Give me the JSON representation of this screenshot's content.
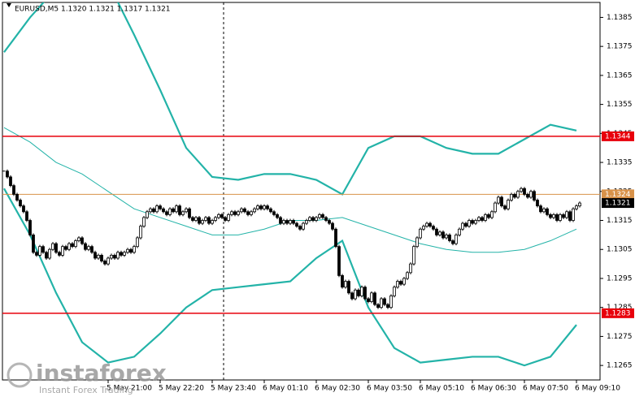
{
  "chart_data": {
    "type": "candlestick",
    "title": "EURUSD,M5  1.1320 1.1321 1.1317 1.1321",
    "watermark": {
      "brand": "instaforex",
      "tagline": "Instant Forex Trading"
    },
    "close": [
      1.1332,
      1.133,
      1.1327,
      1.1324,
      1.1322,
      1.132,
      1.1318,
      1.1315,
      1.131,
      1.1304,
      1.1303,
      1.1306,
      1.1304,
      1.1302,
      1.1305,
      1.1307,
      1.1304,
      1.1303,
      1.1306,
      1.1305,
      1.1307,
      1.1306,
      1.1308,
      1.1309,
      1.1307,
      1.1305,
      1.1306,
      1.1304,
      1.1302,
      1.1303,
      1.1301,
      1.13,
      1.1302,
      1.1303,
      1.1302,
      1.1304,
      1.1303,
      1.1304,
      1.1305,
      1.1304,
      1.1306,
      1.1309,
      1.1313,
      1.1316,
      1.1318,
      1.1319,
      1.1318,
      1.132,
      1.1319,
      1.1318,
      1.1317,
      1.1319,
      1.1318,
      1.132,
      1.1317,
      1.1318,
      1.1319,
      1.1316,
      1.1315,
      1.1316,
      1.1314,
      1.1315,
      1.1316,
      1.1314,
      1.1315,
      1.1316,
      1.1317,
      1.1316,
      1.1315,
      1.1317,
      1.1318,
      1.1317,
      1.1318,
      1.1319,
      1.1318,
      1.1317,
      1.1318,
      1.1319,
      1.132,
      1.1319,
      1.132,
      1.1319,
      1.1318,
      1.1317,
      1.1316,
      1.1314,
      1.1315,
      1.1314,
      1.1315,
      1.1314,
      1.1313,
      1.1312,
      1.1314,
      1.1315,
      1.1316,
      1.1315,
      1.1316,
      1.1317,
      1.1316,
      1.1315,
      1.1314,
      1.1312,
      1.1306,
      1.1296,
      1.1292,
      1.1294,
      1.129,
      1.1288,
      1.1291,
      1.1289,
      1.1292,
      1.1288,
      1.1287,
      1.129,
      1.1286,
      1.1285,
      1.1288,
      1.1286,
      1.1285,
      1.1289,
      1.1292,
      1.1294,
      1.1293,
      1.1295,
      1.1297,
      1.13,
      1.1306,
      1.1309,
      1.1312,
      1.1313,
      1.1314,
      1.1313,
      1.1312,
      1.131,
      1.1311,
      1.1309,
      1.131,
      1.1308,
      1.1307,
      1.131,
      1.1312,
      1.1314,
      1.1313,
      1.1315,
      1.1314,
      1.1315,
      1.1316,
      1.1315,
      1.1317,
      1.1316,
      1.1318,
      1.1321,
      1.1323,
      1.132,
      1.1319,
      1.1322,
      1.1324,
      1.1323,
      1.1325,
      1.1326,
      1.1324,
      1.1323,
      1.1325,
      1.1322,
      1.132,
      1.1318,
      1.1319,
      1.1317,
      1.1316,
      1.1317,
      1.1315,
      1.1317,
      1.1316,
      1.1318,
      1.1315,
      1.1319,
      1.132,
      1.1321
    ],
    "bands": {
      "x": [
        0,
        8,
        16,
        24,
        32,
        40,
        48,
        56,
        64,
        72,
        80,
        88,
        96,
        104,
        112,
        120,
        128,
        136,
        144,
        152,
        160,
        168,
        176
      ],
      "color": "#23b3a8",
      "upper": [
        1.1373,
        1.1385,
        1.1395,
        1.1398,
        1.1397,
        1.1379,
        1.136,
        1.134,
        1.133,
        1.1329,
        1.1331,
        1.1331,
        1.1329,
        1.1324,
        1.134,
        1.1344,
        1.1344,
        1.134,
        1.1338,
        1.1338,
        1.1343,
        1.1348,
        1.1346
      ],
      "middle": [
        1.1347,
        1.1342,
        1.1335,
        1.1331,
        1.1325,
        1.1319,
        1.1316,
        1.1313,
        1.131,
        1.131,
        1.1312,
        1.1315,
        1.1315,
        1.1316,
        1.1313,
        1.131,
        1.1307,
        1.1305,
        1.1304,
        1.1304,
        1.1305,
        1.1308,
        1.1312
      ],
      "lower": [
        1.1326,
        1.131,
        1.129,
        1.1273,
        1.1266,
        1.1268,
        1.1276,
        1.1285,
        1.1291,
        1.1292,
        1.1293,
        1.1294,
        1.1302,
        1.1308,
        1.1285,
        1.1271,
        1.1266,
        1.1267,
        1.1268,
        1.1268,
        1.1265,
        1.1268,
        1.1279
      ]
    },
    "levels": [
      {
        "value": 1.1344,
        "color": "#e8000b"
      },
      {
        "value": 1.1283,
        "color": "#e8000b"
      },
      {
        "value": 1.1324,
        "color": "#d8924a"
      }
    ],
    "current_price": 1.1321,
    "ylim": [
      1.126,
      1.1391
    ],
    "yticks": [
      1.1265,
      1.1275,
      1.1285,
      1.1295,
      1.1305,
      1.1315,
      1.1325,
      1.1335,
      1.1345,
      1.1355,
      1.1365,
      1.1375,
      1.1385
    ],
    "xticks": [
      {
        "value": 32,
        "label": "5 May 21:00"
      },
      {
        "value": 48,
        "label": "5 May 22:20"
      },
      {
        "value": 64,
        "label": "5 May 23:40"
      },
      {
        "value": 80,
        "label": "6 May 01:10"
      },
      {
        "value": 96,
        "label": "6 May 02:30"
      },
      {
        "value": 112,
        "label": "6 May 03:50"
      },
      {
        "value": 128,
        "label": "6 May 05:10"
      },
      {
        "value": 144,
        "label": "6 May 06:30"
      },
      {
        "value": 160,
        "label": "6 May 07:50"
      },
      {
        "value": 176,
        "label": "6 May 09:10"
      }
    ]
  }
}
